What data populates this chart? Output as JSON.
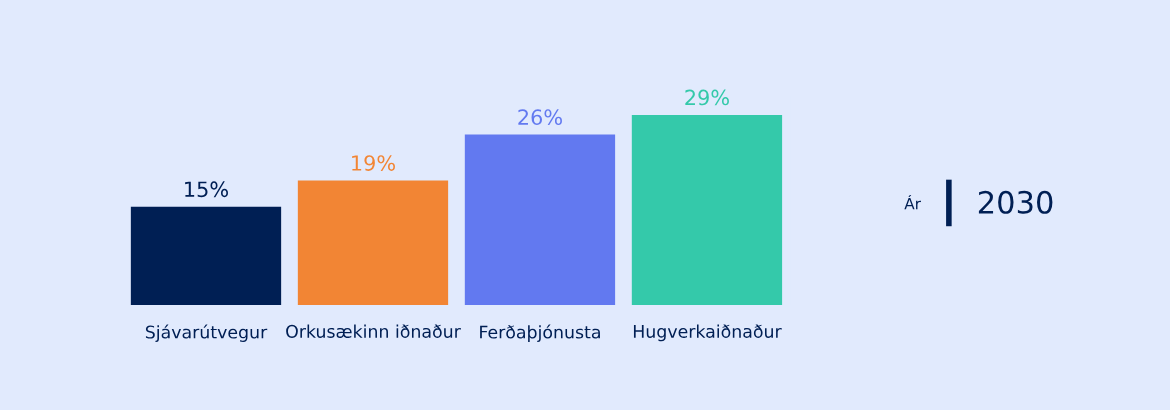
{
  "chart_data": {
    "type": "bar",
    "categories": [
      "Sjávarútvegur",
      "Orkusækinn iðnaður",
      "Ferðaþjónusta",
      "Hugverkaiðnaður"
    ],
    "values": [
      15,
      19,
      26,
      29
    ],
    "colors": [
      "#001f54",
      "#f28534",
      "#6279f0",
      "#34c9aa"
    ],
    "value_labels": [
      "15%",
      "19%",
      "26%",
      "29%"
    ],
    "annotations": [
      "Ár",
      "2030"
    ]
  }
}
